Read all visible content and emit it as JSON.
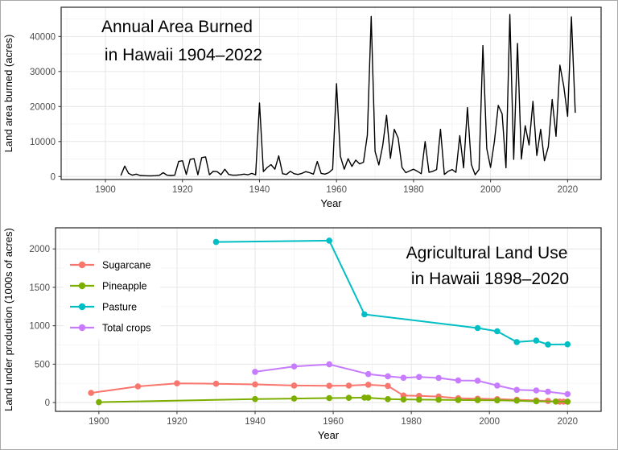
{
  "figure": {
    "background": "#ffffff",
    "border_color": "#a9a9a9",
    "text_color": "#000000",
    "tick_label_color": "#4d4d4d",
    "panel_border_color": "#333333",
    "grid_major_color": "#e6e6e6",
    "grid_minor_color": "#f3f3f3"
  },
  "chart_data": [
    {
      "id": "burned-area",
      "type": "line",
      "title": "Annual Area Burned in Hawaii 1904–2022",
      "title_lines": [
        "Annual Area Burned",
        "in Hawaii 1904–2022"
      ],
      "xlabel": "Year",
      "ylabel": "Land area burned (acres)",
      "xlim": [
        1888.5,
        2028.7
      ],
      "ylim": [
        -850,
        48350
      ],
      "x_ticks": [
        1900,
        1920,
        1940,
        1960,
        1980,
        2000,
        2020
      ],
      "y_ticks": [
        0,
        10000,
        20000,
        30000,
        40000
      ],
      "x_minor_ticks": [
        1890,
        1910,
        1930,
        1950,
        1970,
        1990,
        2010
      ],
      "y_minor_ticks": [
        5000,
        15000,
        25000,
        35000,
        45000
      ],
      "grid": true,
      "legend": null,
      "series": [
        {
          "name": "Area burned",
          "color": "#000000",
          "show_points": false,
          "points": [
            [
              1904,
              300
            ],
            [
              1905,
              3000
            ],
            [
              1906,
              900
            ],
            [
              1907,
              400
            ],
            [
              1908,
              700
            ],
            [
              1909,
              300
            ],
            [
              1910,
              250
            ],
            [
              1911,
              200
            ],
            [
              1912,
              200
            ],
            [
              1913,
              250
            ],
            [
              1914,
              350
            ],
            [
              1915,
              1100
            ],
            [
              1916,
              400
            ],
            [
              1917,
              300
            ],
            [
              1918,
              400
            ],
            [
              1919,
              4300
            ],
            [
              1920,
              4500
            ],
            [
              1921,
              600
            ],
            [
              1922,
              4900
            ],
            [
              1923,
              5100
            ],
            [
              1924,
              500
            ],
            [
              1925,
              5400
            ],
            [
              1926,
              5600
            ],
            [
              1927,
              500
            ],
            [
              1928,
              1500
            ],
            [
              1929,
              1400
            ],
            [
              1930,
              500
            ],
            [
              1931,
              2100
            ],
            [
              1932,
              600
            ],
            [
              1933,
              400
            ],
            [
              1934,
              400
            ],
            [
              1935,
              500
            ],
            [
              1936,
              700
            ],
            [
              1937,
              500
            ],
            [
              1938,
              900
            ],
            [
              1939,
              500
            ],
            [
              1940,
              21000
            ],
            [
              1941,
              1400
            ],
            [
              1942,
              2600
            ],
            [
              1943,
              3400
            ],
            [
              1944,
              2100
            ],
            [
              1945,
              5900
            ],
            [
              1946,
              800
            ],
            [
              1947,
              600
            ],
            [
              1948,
              1500
            ],
            [
              1949,
              800
            ],
            [
              1950,
              600
            ],
            [
              1951,
              900
            ],
            [
              1952,
              1400
            ],
            [
              1953,
              1100
            ],
            [
              1954,
              700
            ],
            [
              1955,
              4300
            ],
            [
              1956,
              900
            ],
            [
              1957,
              700
            ],
            [
              1958,
              1100
            ],
            [
              1959,
              2100
            ],
            [
              1960,
              26500
            ],
            [
              1961,
              5800
            ],
            [
              1962,
              2100
            ],
            [
              1963,
              5100
            ],
            [
              1964,
              2900
            ],
            [
              1965,
              4700
            ],
            [
              1966,
              3600
            ],
            [
              1967,
              4100
            ],
            [
              1968,
              11800
            ],
            [
              1969,
              45700
            ],
            [
              1970,
              7200
            ],
            [
              1971,
              3300
            ],
            [
              1972,
              8800
            ],
            [
              1973,
              17500
            ],
            [
              1974,
              5200
            ],
            [
              1975,
              13500
            ],
            [
              1976,
              11000
            ],
            [
              1977,
              2600
            ],
            [
              1978,
              1100
            ],
            [
              1979,
              1600
            ],
            [
              1980,
              2100
            ],
            [
              1981,
              1500
            ],
            [
              1982,
              800
            ],
            [
              1983,
              10000
            ],
            [
              1984,
              1200
            ],
            [
              1985,
              1500
            ],
            [
              1986,
              2000
            ],
            [
              1987,
              13500
            ],
            [
              1988,
              600
            ],
            [
              1989,
              1500
            ],
            [
              1990,
              2000
            ],
            [
              1991,
              1200
            ],
            [
              1992,
              11700
            ],
            [
              1993,
              2500
            ],
            [
              1994,
              19700
            ],
            [
              1995,
              3500
            ],
            [
              1996,
              500
            ],
            [
              1997,
              2000
            ],
            [
              1998,
              37400
            ],
            [
              1999,
              8000
            ],
            [
              2000,
              2600
            ],
            [
              2001,
              10000
            ],
            [
              2002,
              20300
            ],
            [
              2003,
              17900
            ],
            [
              2004,
              2500
            ],
            [
              2005,
              46300
            ],
            [
              2006,
              4900
            ],
            [
              2007,
              38000
            ],
            [
              2008,
              5000
            ],
            [
              2009,
              14500
            ],
            [
              2010,
              9000
            ],
            [
              2011,
              21500
            ],
            [
              2012,
              6000
            ],
            [
              2013,
              13500
            ],
            [
              2014,
              4500
            ],
            [
              2015,
              8500
            ],
            [
              2016,
              22000
            ],
            [
              2017,
              11500
            ],
            [
              2018,
              31800
            ],
            [
              2019,
              25800
            ],
            [
              2020,
              17200
            ],
            [
              2021,
              45600
            ],
            [
              2022,
              18200
            ]
          ]
        }
      ]
    },
    {
      "id": "land-use",
      "type": "line",
      "title": "Agricultural Land Use in Hawaii 1898–2020",
      "title_lines": [
        "Agricultural Land Use",
        "in Hawaii 1898–2020"
      ],
      "xlabel": "Year",
      "ylabel": "Land under production (1000s of acres)",
      "xlim": [
        1888.9,
        2028.6
      ],
      "ylim": [
        -115,
        2275
      ],
      "x_ticks": [
        1900,
        1920,
        1940,
        1960,
        1980,
        2000,
        2020
      ],
      "y_ticks": [
        0,
        500,
        1000,
        1500,
        2000
      ],
      "x_minor_ticks": [
        1890,
        1910,
        1930,
        1950,
        1970,
        1990,
        2010
      ],
      "y_minor_ticks": [
        250,
        750,
        1250,
        1750
      ],
      "grid": true,
      "legend": {
        "position": "inside-left",
        "items": [
          "Sugarcane",
          "Pineapple",
          "Pasture",
          "Total crops"
        ]
      },
      "series": [
        {
          "name": "Sugarcane",
          "color": "#F8766D",
          "show_points": true,
          "points": [
            [
              1898,
              125
            ],
            [
              1910,
              210
            ],
            [
              1920,
              250
            ],
            [
              1930,
              245
            ],
            [
              1940,
              236
            ],
            [
              1950,
              222
            ],
            [
              1959,
              218
            ],
            [
              1964,
              220
            ],
            [
              1969,
              232
            ],
            [
              1974,
              216
            ],
            [
              1978,
              92
            ],
            [
              1982,
              86
            ],
            [
              1987,
              78
            ],
            [
              1992,
              56
            ],
            [
              1997,
              50
            ],
            [
              2002,
              44
            ],
            [
              2007,
              36
            ],
            [
              2012,
              28
            ],
            [
              2015,
              20
            ],
            [
              2017,
              13
            ],
            [
              2018,
              12
            ],
            [
              2019,
              11
            ],
            [
              2020,
              11
            ]
          ]
        },
        {
          "name": "Pineapple",
          "color": "#7CAE00",
          "show_points": true,
          "points": [
            [
              1900,
              4
            ],
            [
              1940,
              45
            ],
            [
              1950,
              52
            ],
            [
              1959,
              58
            ],
            [
              1964,
              61
            ],
            [
              1968,
              64
            ],
            [
              1969,
              62
            ],
            [
              1974,
              44
            ],
            [
              1978,
              40
            ],
            [
              1982,
              38
            ],
            [
              1987,
              36
            ],
            [
              1992,
              33
            ],
            [
              1997,
              31
            ],
            [
              2002,
              29
            ],
            [
              2007,
              24
            ],
            [
              2012,
              16
            ],
            [
              2017,
              13
            ],
            [
              2020,
              11
            ]
          ]
        },
        {
          "name": "Pasture",
          "color": "#00BFC4",
          "show_points": true,
          "points": [
            [
              1930,
              2090
            ],
            [
              1959,
              2108
            ],
            [
              1968,
              1148
            ],
            [
              1997,
              970
            ],
            [
              2002,
              928
            ],
            [
              2007,
              788
            ],
            [
              2012,
              806
            ],
            [
              2015,
              755
            ],
            [
              2020,
              758
            ]
          ]
        },
        {
          "name": "Total crops",
          "color": "#C77CFF",
          "show_points": true,
          "points": [
            [
              1940,
              400
            ],
            [
              1950,
              470
            ],
            [
              1959,
              497
            ],
            [
              1969,
              370
            ],
            [
              1974,
              342
            ],
            [
              1978,
              322
            ],
            [
              1982,
              333
            ],
            [
              1987,
              320
            ],
            [
              1992,
              288
            ],
            [
              1997,
              284
            ],
            [
              2002,
              222
            ],
            [
              2007,
              165
            ],
            [
              2012,
              158
            ],
            [
              2015,
              141
            ],
            [
              2020,
              110
            ]
          ]
        }
      ]
    }
  ]
}
